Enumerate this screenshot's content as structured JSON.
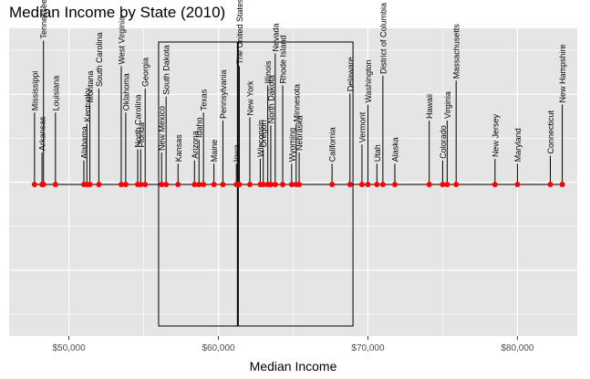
{
  "chart_data": {
    "type": "scatter",
    "title": "Median Income by State (2010)",
    "xlabel": "Median Income",
    "ylabel": "",
    "xlim": [
      46000,
      84000
    ],
    "xticks": [
      50000,
      60000,
      70000,
      80000
    ],
    "xtick_labels": [
      "$50,000",
      "$60,000",
      "$70,000",
      "$80,000"
    ],
    "grid": true,
    "point_color": "#FF0000",
    "segment_color": "#000000",
    "panel_background": "#E5E5E5",
    "gridline_color": "#FFFFFF",
    "points": [
      {
        "state": "Mississippi",
        "income": 47700
      },
      {
        "state": "Arkansas",
        "income": 48200
      },
      {
        "state": "Tennessee",
        "income": 48300
      },
      {
        "state": "Louisiana",
        "income": 49100
      },
      {
        "state": "Alabama",
        "income": 51000
      },
      {
        "state": "Kentucky",
        "income": 51200
      },
      {
        "state": "Montana",
        "income": 51400
      },
      {
        "state": "South Carolina",
        "income": 52000
      },
      {
        "state": "West Virginia",
        "income": 53500
      },
      {
        "state": "Oklahoma",
        "income": 53800
      },
      {
        "state": "North Carolina",
        "income": 54600
      },
      {
        "state": "Florida",
        "income": 54800
      },
      {
        "state": "Georgia",
        "income": 55100
      },
      {
        "state": "New Mexico",
        "income": 56200
      },
      {
        "state": "South Dakota",
        "income": 56500
      },
      {
        "state": "Kansas",
        "income": 57300
      },
      {
        "state": "Arizona",
        "income": 58400
      },
      {
        "state": "Idaho",
        "income": 58700
      },
      {
        "state": "Texas",
        "income": 59000
      },
      {
        "state": "Maine",
        "income": 59700
      },
      {
        "state": "Pennsylvania",
        "income": 60300
      },
      {
        "state": "Iowa",
        "income": 61200
      },
      {
        "state": "The United States",
        "income": 61400
      },
      {
        "state": "New York",
        "income": 62100
      },
      {
        "state": "Wisconsin",
        "income": 62800
      },
      {
        "state": "Oregon",
        "income": 63000
      },
      {
        "state": "Illinois",
        "income": 63300
      },
      {
        "state": "North Dakota",
        "income": 63500
      },
      {
        "state": "Nevada",
        "income": 63800
      },
      {
        "state": "Rhode Island",
        "income": 64300
      },
      {
        "state": "Wyoming",
        "income": 64900
      },
      {
        "state": "Minnesota",
        "income": 65200
      },
      {
        "state": "Nebraska",
        "income": 65400
      },
      {
        "state": "California",
        "income": 67600
      },
      {
        "state": "Delaware",
        "income": 68800
      },
      {
        "state": "Vermont",
        "income": 69600
      },
      {
        "state": "Washington",
        "income": 70000
      },
      {
        "state": "Utah",
        "income": 70600
      },
      {
        "state": "District of Columbia",
        "income": 71000
      },
      {
        "state": "Alaska",
        "income": 71800
      },
      {
        "state": "Hawaii",
        "income": 74100
      },
      {
        "state": "Colorado",
        "income": 75000
      },
      {
        "state": "Virginia",
        "income": 75300
      },
      {
        "state": "Massachusetts",
        "income": 75900
      },
      {
        "state": "New Jersey",
        "income": 78500
      },
      {
        "state": "Maryland",
        "income": 80000
      },
      {
        "state": "Connecticut",
        "income": 82200
      },
      {
        "state": "New Hampshire",
        "income": 83000
      }
    ],
    "box": {
      "income_low": 56000,
      "income_high": 69000
    },
    "center_line": {
      "income": 61300
    },
    "stems": [
      {
        "state": "Mississippi",
        "height": 0.45
      },
      {
        "state": "Arkansas",
        "height": 0.2
      },
      {
        "state": "Tennessee",
        "height": 0.9
      },
      {
        "state": "Louisiana",
        "height": 0.45
      },
      {
        "state": "Alabama",
        "height": 0.15
      },
      {
        "state": "Kentucky",
        "height": 0.38
      },
      {
        "state": "Montana",
        "height": 0.5
      },
      {
        "state": "South Carolina",
        "height": 0.6
      },
      {
        "state": "West Virginia",
        "height": 0.74
      },
      {
        "state": "Oklahoma",
        "height": 0.45
      },
      {
        "state": "North Carolina",
        "height": 0.22
      },
      {
        "state": "Florida",
        "height": 0.22
      },
      {
        "state": "Georgia",
        "height": 0.6
      },
      {
        "state": "New Mexico",
        "height": 0.2
      },
      {
        "state": "South Dakota",
        "height": 0.55
      },
      {
        "state": "Kansas",
        "height": 0.13
      },
      {
        "state": "Arizona",
        "height": 0.15
      },
      {
        "state": "Idaho",
        "height": 0.28
      },
      {
        "state": "Texas",
        "height": 0.45
      },
      {
        "state": "Maine",
        "height": 0.13
      },
      {
        "state": "Pennsylvania",
        "height": 0.4
      },
      {
        "state": "Iowa",
        "height": 0.13
      },
      {
        "state": "The United States",
        "height": 0.74
      },
      {
        "state": "New York",
        "height": 0.42
      },
      {
        "state": "Wisconsin",
        "height": 0.16
      },
      {
        "state": "Oregon",
        "height": 0.22
      },
      {
        "state": "Illinois",
        "height": 0.62
      },
      {
        "state": "North Dakota",
        "height": 0.37
      },
      {
        "state": "Nevada",
        "height": 0.82
      },
      {
        "state": "Rhode Island",
        "height": 0.62
      },
      {
        "state": "Wyoming",
        "height": 0.13
      },
      {
        "state": "Minnesota",
        "height": 0.38
      },
      {
        "state": "Nebraska",
        "height": 0.2
      },
      {
        "state": "California",
        "height": 0.13
      },
      {
        "state": "Delaware",
        "height": 0.57
      },
      {
        "state": "Vermont",
        "height": 0.25
      },
      {
        "state": "Washington",
        "height": 0.5
      },
      {
        "state": "Utah",
        "height": 0.13
      },
      {
        "state": "District of Columbia",
        "height": 0.68
      },
      {
        "state": "Alaska",
        "height": 0.13
      },
      {
        "state": "Hawaii",
        "height": 0.4
      },
      {
        "state": "Colorado",
        "height": 0.15
      },
      {
        "state": "Virginia",
        "height": 0.4
      },
      {
        "state": "Massachusetts",
        "height": 0.65
      },
      {
        "state": "New Jersey",
        "height": 0.16
      },
      {
        "state": "Maryland",
        "height": 0.13
      },
      {
        "state": "Connecticut",
        "height": 0.18
      },
      {
        "state": "New Hampshire",
        "height": 0.5
      }
    ]
  }
}
